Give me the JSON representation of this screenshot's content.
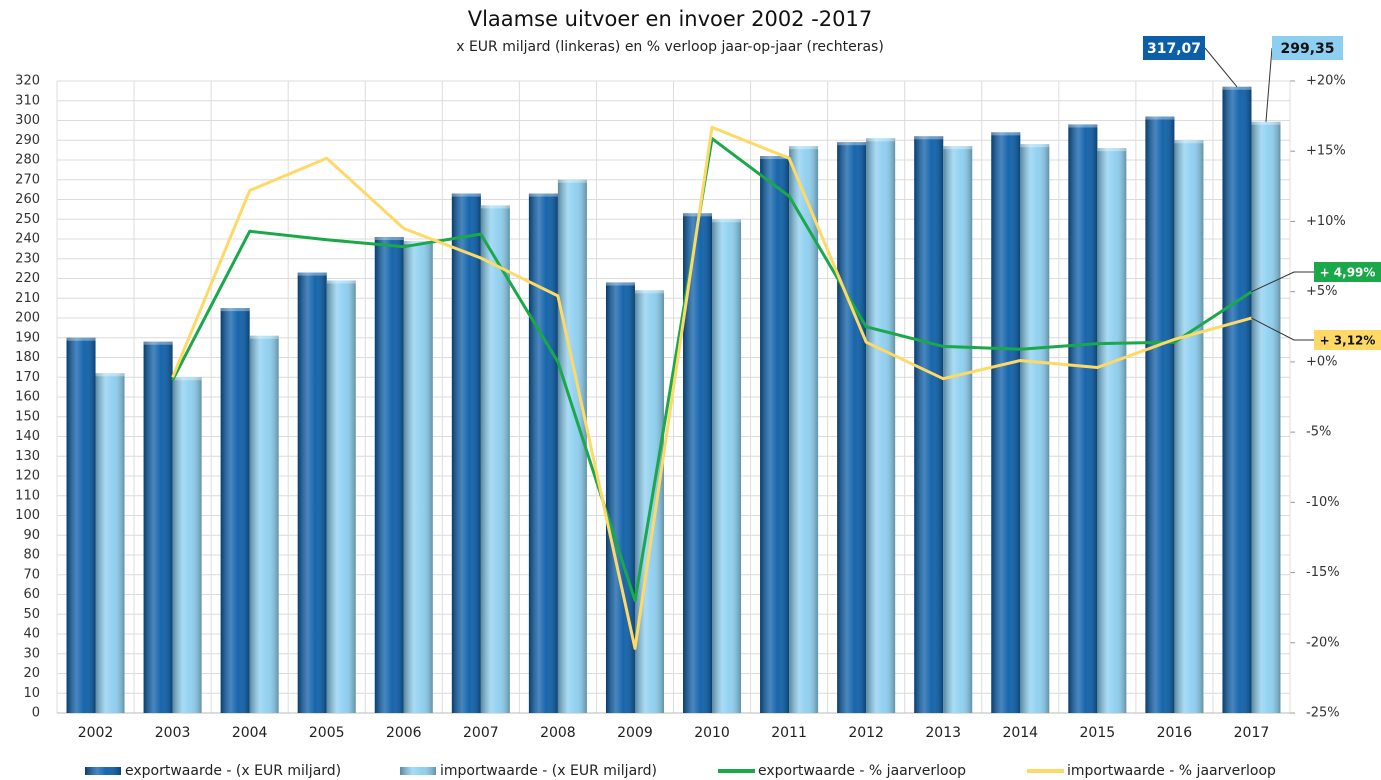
{
  "chart_data": {
    "type": "bar",
    "title": "Vlaamse uitvoer en invoer 2002 -2017",
    "subtitle": "x EUR miljard (linkeras) en % verloop jaar-op-jaar (rechteras)",
    "categories": [
      "2002",
      "2003",
      "2004",
      "2005",
      "2006",
      "2007",
      "2008",
      "2009",
      "2010",
      "2011",
      "2012",
      "2013",
      "2014",
      "2015",
      "2016",
      "2017"
    ],
    "series": [
      {
        "name": "exportwaarde - (x EUR miljard)",
        "type": "bar",
        "color": "#0b5ea8",
        "values": [
          190,
          188,
          205,
          223,
          241,
          263,
          263,
          218,
          253,
          282,
          289,
          292,
          294,
          298,
          302,
          317.07
        ],
        "value_labels": [
          null,
          null,
          null,
          null,
          null,
          null,
          null,
          null,
          null,
          null,
          null,
          null,
          null,
          null,
          null,
          "317,07"
        ]
      },
      {
        "name": "importwaarde - (x EUR miljard)",
        "type": "bar",
        "color": "#8ccff0",
        "values": [
          172,
          170,
          191,
          219,
          239,
          257,
          270,
          214,
          250,
          287,
          291,
          287,
          288,
          286,
          290,
          299.35
        ],
        "value_labels": [
          null,
          null,
          null,
          null,
          null,
          null,
          null,
          null,
          null,
          null,
          null,
          null,
          null,
          null,
          null,
          "299,35"
        ]
      },
      {
        "name": "exportwaarde - % jaarverloop",
        "type": "line",
        "axis": "y2",
        "color": "#1aa84a",
        "values": [
          null,
          -1.3,
          9.3,
          8.7,
          8.2,
          9.1,
          0.0,
          -17.0,
          15.9,
          11.8,
          2.5,
          1.1,
          0.9,
          1.3,
          1.4,
          4.99
        ],
        "value_labels": [
          null,
          null,
          null,
          null,
          null,
          null,
          null,
          null,
          null,
          null,
          null,
          null,
          null,
          null,
          null,
          "+ 4,99%"
        ]
      },
      {
        "name": "importwaarde - % jaarverloop",
        "type": "line",
        "axis": "y2",
        "color": "#ffd966",
        "values": [
          null,
          -1.1,
          12.2,
          14.5,
          9.5,
          7.4,
          4.7,
          -20.4,
          16.7,
          14.5,
          1.4,
          -1.2,
          0.1,
          -0.4,
          1.6,
          3.12
        ],
        "value_labels": [
          null,
          null,
          null,
          null,
          null,
          null,
          null,
          null,
          null,
          null,
          null,
          null,
          null,
          null,
          null,
          "+ 3,12%"
        ]
      }
    ],
    "ylim": [
      0,
      320
    ],
    "yticks": [
      0,
      10,
      20,
      30,
      40,
      50,
      60,
      70,
      80,
      90,
      100,
      110,
      120,
      130,
      140,
      150,
      160,
      170,
      180,
      190,
      200,
      210,
      220,
      230,
      240,
      250,
      260,
      270,
      280,
      290,
      300,
      310,
      320
    ],
    "y2lim": [
      -25,
      20
    ],
    "y2ticks": [
      {
        "value": -25,
        "label": "-25%"
      },
      {
        "value": -20,
        "label": "-20%"
      },
      {
        "value": -15,
        "label": "-15%"
      },
      {
        "value": -10,
        "label": "-10%"
      },
      {
        "value": -5,
        "label": "-5%"
      },
      {
        "value": 0,
        "label": "+0%"
      },
      {
        "value": 5,
        "label": "+5%"
      },
      {
        "value": 10,
        "label": "+10%"
      },
      {
        "value": 15,
        "label": "+15%"
      },
      {
        "value": 20,
        "label": "+20%"
      }
    ],
    "grid": true,
    "legend": "bottom"
  }
}
